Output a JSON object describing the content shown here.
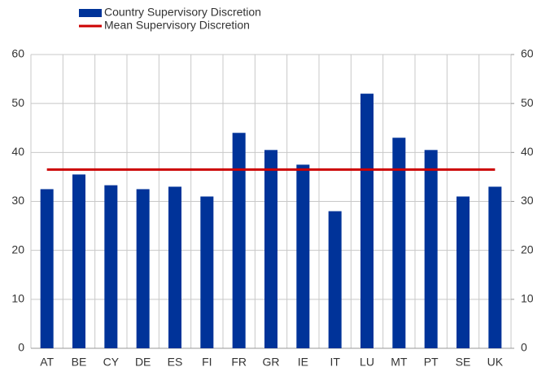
{
  "chart_data": {
    "type": "bar",
    "categories": [
      "AT",
      "BE",
      "CY",
      "DE",
      "ES",
      "FI",
      "FR",
      "GR",
      "IE",
      "IT",
      "LU",
      "MT",
      "PT",
      "SE",
      "UK"
    ],
    "series": [
      {
        "name": "Country Supervisory Discretion",
        "color": "#003399",
        "values": [
          32.5,
          35.5,
          33.3,
          32.5,
          33,
          31,
          44,
          40.5,
          37.5,
          28,
          52,
          43,
          40.5,
          31,
          33
        ]
      },
      {
        "name": "Mean Supervisory Discretion",
        "color": "#cc0000",
        "type": "line",
        "values": [
          36.5,
          36.5,
          36.5,
          36.5,
          36.5,
          36.5,
          36.5,
          36.5,
          36.5,
          36.5,
          36.5,
          36.5,
          36.5,
          36.5,
          36.5
        ]
      }
    ],
    "ylim": [
      0,
      60
    ],
    "yticks": [
      0,
      10,
      20,
      30,
      40,
      50,
      60
    ],
    "y2lim": [
      0,
      60
    ],
    "y2ticks": [
      0,
      10,
      20,
      30,
      40,
      50,
      60
    ],
    "grid": true
  }
}
